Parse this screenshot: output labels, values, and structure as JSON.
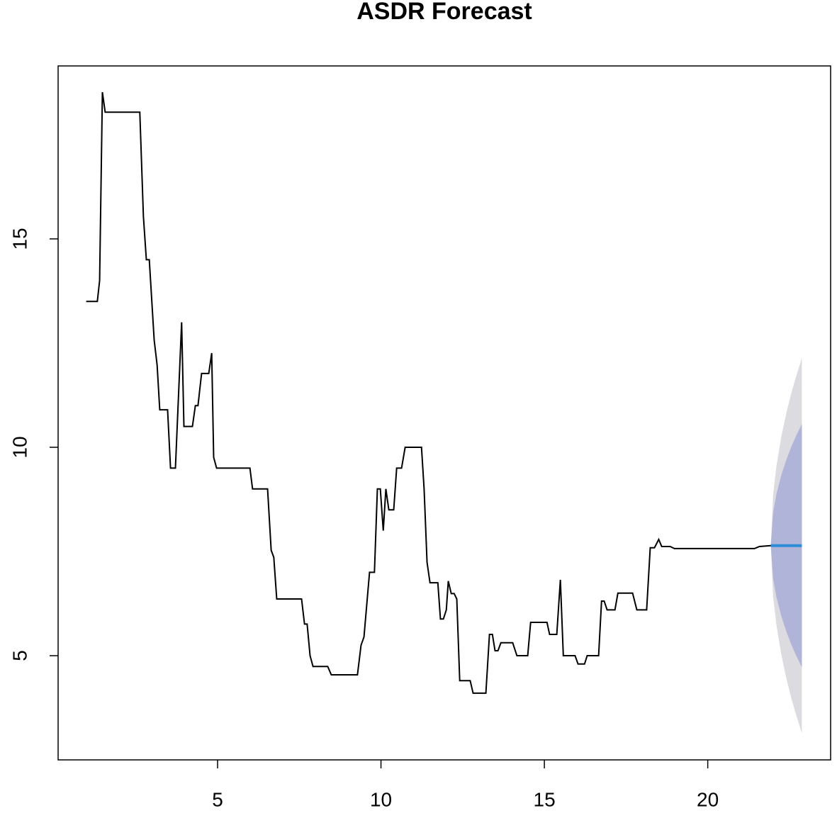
{
  "chart_data": {
    "type": "line",
    "title": "ASDR Forecast",
    "xlim": [
      0.12,
      23.76
    ],
    "ylim": [
      2.5,
      19.15
    ],
    "xticks": [
      5,
      10,
      15,
      20
    ],
    "yticks": [
      5,
      10,
      15
    ],
    "grid": false,
    "series": [
      {
        "color": "#000000",
        "x": [
          0.98,
          1.32,
          1.39,
          1.475,
          1.56,
          2.62,
          2.73,
          2.82,
          2.91,
          3.06,
          3.15,
          3.23,
          3.47,
          3.56,
          3.71,
          3.9,
          3.97,
          4.23,
          4.32,
          4.4,
          4.51,
          4.73,
          4.82,
          4.88,
          4.97,
          5.99,
          6.07,
          6.53,
          6.64,
          6.72,
          6.81,
          7.57,
          7.66,
          7.74,
          7.83,
          7.92,
          8.37,
          8.48,
          9.28,
          9.39,
          9.48,
          9.65,
          9.8,
          9.89,
          9.98,
          10.07,
          10.15,
          10.24,
          10.39,
          10.48,
          10.63,
          10.74,
          11.24,
          11.32,
          11.41,
          11.5,
          11.74,
          11.82,
          11.91,
          12.0,
          12.06,
          12.15,
          12.24,
          12.32,
          12.41,
          12.73,
          12.82,
          13.21,
          13.32,
          13.41,
          13.49,
          13.58,
          13.67,
          14.03,
          14.16,
          14.49,
          14.58,
          15.08,
          15.16,
          15.38,
          15.49,
          15.58,
          15.94,
          16.03,
          16.23,
          16.31,
          16.66,
          16.75,
          16.83,
          16.92,
          17.16,
          17.25,
          17.7,
          17.83,
          18.13,
          18.24,
          18.37,
          18.5,
          18.59,
          18.85,
          18.98,
          21.43,
          21.58,
          21.93
        ],
        "values": [
          13.5,
          13.5,
          14.0,
          18.52,
          18.04,
          18.04,
          15.54,
          14.5,
          14.5,
          12.57,
          11.97,
          10.9,
          10.9,
          9.5,
          9.5,
          13.0,
          10.5,
          10.5,
          11.0,
          11.0,
          11.77,
          11.77,
          12.26,
          9.76,
          9.5,
          9.5,
          9.0,
          9.0,
          7.53,
          7.36,
          6.36,
          6.36,
          5.76,
          5.76,
          5.0,
          4.74,
          4.74,
          4.54,
          4.54,
          5.25,
          5.45,
          7.0,
          7.0,
          9.0,
          9.0,
          8.0,
          9.0,
          8.5,
          8.5,
          9.5,
          9.5,
          10.0,
          10.0,
          9.0,
          7.24,
          6.75,
          6.75,
          5.88,
          5.88,
          6.1,
          6.79,
          6.49,
          6.49,
          6.36,
          4.4,
          4.4,
          4.1,
          4.1,
          5.51,
          5.51,
          5.12,
          5.12,
          5.31,
          5.31,
          5.0,
          5.0,
          5.8,
          5.8,
          5.51,
          5.51,
          6.82,
          5.0,
          5.0,
          4.8,
          4.8,
          5.0,
          5.0,
          6.31,
          6.31,
          6.1,
          6.1,
          6.5,
          6.5,
          6.1,
          6.1,
          7.59,
          7.59,
          7.79,
          7.62,
          7.62,
          7.57,
          7.57,
          7.62,
          7.64
        ]
      }
    ],
    "forecast": {
      "x": [
        21.93,
        22.0,
        22.1,
        22.25,
        22.4,
        22.55,
        22.7,
        22.88
      ],
      "mean": [
        7.64,
        7.64,
        7.64,
        7.64,
        7.64,
        7.64,
        7.64,
        7.64
      ],
      "lo80": [
        7.64,
        6.85,
        6.41,
        5.95,
        5.59,
        5.28,
        5.01,
        4.72
      ],
      "hi80": [
        7.64,
        8.43,
        8.87,
        9.33,
        9.69,
        10.0,
        10.27,
        10.56
      ],
      "lo95": [
        7.64,
        6.42,
        5.74,
        5.03,
        4.47,
        4.0,
        3.59,
        3.14
      ],
      "hi95": [
        7.64,
        8.86,
        9.54,
        10.25,
        10.81,
        11.28,
        11.69,
        12.14
      ],
      "color": "#2b8cd8",
      "color80": "#b0b4d8",
      "color95": "#dcdce0"
    }
  }
}
